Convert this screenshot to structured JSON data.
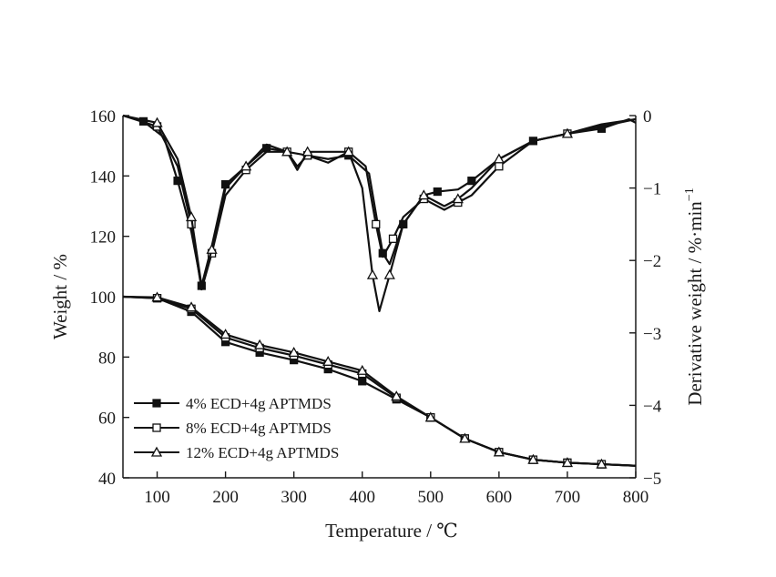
{
  "chart_data": {
    "type": "line",
    "x_range": [
      50,
      800
    ],
    "x_ticks": [
      100,
      200,
      300,
      400,
      500,
      600,
      700,
      800
    ],
    "xlabel": "Temperature / ℃",
    "y_left": {
      "label": "Weight / %",
      "range": [
        40,
        160
      ],
      "ticks": [
        40,
        60,
        80,
        100,
        120,
        140,
        160
      ]
    },
    "y_right": {
      "label": "Derivative weight / %·min",
      "label_sup": "−1",
      "range": [
        -5,
        0
      ],
      "ticks": [
        0,
        -1,
        -2,
        -3,
        -4,
        -5
      ]
    },
    "legend_position": "lower-left",
    "series": [
      {
        "name": "4% ECD+4g APTMDS",
        "marker": "filled-square",
        "tg": {
          "x": [
            50,
            100,
            150,
            200,
            250,
            300,
            350,
            400,
            450,
            500,
            550,
            600,
            650,
            700,
            750,
            800
          ],
          "y": [
            100,
            99.5,
            95,
            85,
            81.5,
            79,
            76,
            72,
            66,
            60,
            53,
            48.5,
            46,
            45,
            44.5,
            44
          ]
        },
        "dtg": {
          "x": [
            50,
            80,
            110,
            130,
            150,
            165,
            180,
            200,
            230,
            260,
            290,
            320,
            350,
            380,
            410,
            430,
            440,
            460,
            490,
            510,
            540,
            560,
            600,
            650,
            700,
            750,
            790,
            800
          ],
          "y": [
            0,
            -0.08,
            -0.3,
            -0.9,
            -1.6,
            -2.35,
            -1.8,
            -0.95,
            -0.7,
            -0.45,
            -0.5,
            -0.55,
            -0.6,
            -0.55,
            -0.8,
            -1.9,
            -2.05,
            -1.5,
            -1.1,
            -1.05,
            -1.02,
            -0.9,
            -0.6,
            -0.35,
            -0.25,
            -0.18,
            -0.05,
            -0.1
          ]
        }
      },
      {
        "name": "8% ECD+4g APTMDS",
        "marker": "open-square",
        "tg": {
          "x": [
            50,
            100,
            150,
            200,
            250,
            300,
            350,
            400,
            450,
            500,
            550,
            600,
            650,
            700,
            750,
            800
          ],
          "y": [
            100,
            99.5,
            96,
            86.5,
            83,
            80.5,
            77.5,
            74.5,
            66.5,
            60,
            53,
            48.5,
            46,
            45,
            44.5,
            44
          ]
        },
        "dtg": {
          "x": [
            50,
            100,
            130,
            150,
            165,
            180,
            200,
            230,
            260,
            290,
            305,
            320,
            350,
            380,
            405,
            420,
            430,
            445,
            460,
            490,
            520,
            540,
            560,
            600,
            650,
            700,
            750,
            800
          ],
          "y": [
            0,
            -0.15,
            -0.7,
            -1.5,
            -2.4,
            -1.9,
            -1.1,
            -0.75,
            -0.5,
            -0.5,
            -0.7,
            -0.55,
            -0.65,
            -0.5,
            -0.7,
            -1.5,
            -1.95,
            -1.7,
            -1.4,
            -1.15,
            -1.3,
            -1.2,
            -1.1,
            -0.7,
            -0.35,
            -0.25,
            -0.15,
            -0.05
          ]
        }
      },
      {
        "name": "12% ECD+4g APTMDS",
        "marker": "open-triangle",
        "tg": {
          "x": [
            50,
            100,
            150,
            200,
            250,
            300,
            350,
            400,
            450,
            500,
            550,
            600,
            650,
            700,
            750,
            800
          ],
          "y": [
            100,
            99.8,
            96.5,
            87.5,
            84,
            81.5,
            78.5,
            75.5,
            67,
            60,
            53,
            48.5,
            46,
            45,
            44.5,
            44
          ]
        },
        "dtg": {
          "x": [
            50,
            100,
            130,
            150,
            165,
            180,
            200,
            230,
            260,
            290,
            305,
            320,
            350,
            380,
            400,
            415,
            425,
            440,
            460,
            490,
            520,
            540,
            560,
            600,
            650,
            700,
            750,
            800
          ],
          "y": [
            0,
            -0.1,
            -0.6,
            -1.4,
            -2.35,
            -1.85,
            -1.0,
            -0.7,
            -0.4,
            -0.5,
            -0.75,
            -0.5,
            -0.5,
            -0.5,
            -1.0,
            -2.2,
            -2.7,
            -2.2,
            -1.5,
            -1.1,
            -1.25,
            -1.15,
            -1.0,
            -0.6,
            -0.35,
            -0.25,
            -0.12,
            -0.05
          ]
        }
      }
    ]
  }
}
